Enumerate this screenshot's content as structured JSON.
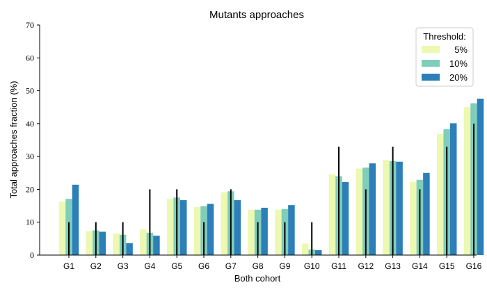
{
  "chart_data": {
    "type": "bar",
    "title": "Mutants approaches",
    "xlabel": "Both cohort",
    "ylabel": "Total approaches fraction (%)",
    "ylim": [
      0,
      70
    ],
    "yticks": [
      0,
      10,
      20,
      30,
      40,
      50,
      60,
      70
    ],
    "categories": [
      "G1",
      "G2",
      "G3",
      "G4",
      "G5",
      "G6",
      "G7",
      "G8",
      "G9",
      "G10",
      "G11",
      "G12",
      "G13",
      "G14",
      "G15",
      "G16"
    ],
    "series": [
      {
        "name": "5%",
        "color": "#edf8b1",
        "values": [
          16.3,
          7.3,
          6.6,
          7.8,
          17.1,
          14.6,
          19.1,
          13.8,
          13.8,
          3.5,
          24.6,
          26.3,
          28.9,
          22.3,
          36.8,
          45.0
        ]
      },
      {
        "name": "10%",
        "color": "#7fcdbb",
        "values": [
          17.1,
          7.5,
          6.2,
          6.8,
          17.5,
          14.9,
          19.4,
          13.8,
          14.0,
          1.7,
          24.0,
          26.6,
          28.6,
          22.9,
          38.3,
          46.2
        ]
      },
      {
        "name": "20%",
        "color": "#2c7fb8",
        "values": [
          21.4,
          7.1,
          3.6,
          5.9,
          16.7,
          15.6,
          16.7,
          14.4,
          15.2,
          1.5,
          22.2,
          27.9,
          28.4,
          25.0,
          40.1,
          47.6
        ]
      }
    ],
    "error_bars": [
      10,
      10,
      10,
      20,
      20,
      10,
      20,
      10,
      10,
      10,
      33,
      20,
      33,
      20,
      33,
      40
    ],
    "legend": {
      "title": "Threshold:",
      "position": "top-right"
    },
    "grid": false
  }
}
